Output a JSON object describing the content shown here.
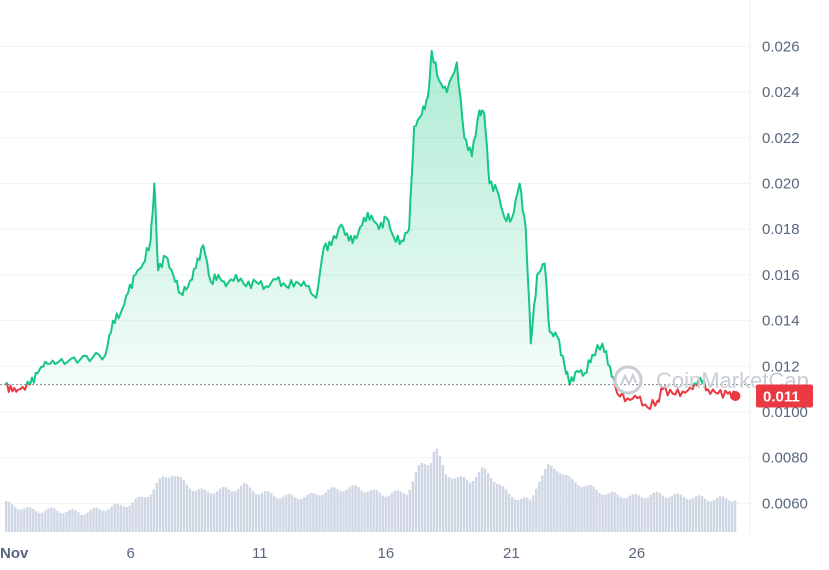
{
  "chart_data": {
    "type": "area",
    "y_ticks": [
      "0.026",
      "0.024",
      "0.022",
      "0.020",
      "0.018",
      "0.016",
      "0.014",
      "0.012",
      "0.0100",
      "0.0080",
      "0.0060"
    ],
    "x_ticks": [
      "Nov",
      "6",
      "11",
      "16",
      "21",
      "26"
    ],
    "x_tick_days": [
      1,
      6,
      11,
      16,
      21,
      26
    ],
    "ylim": [
      0.0055,
      0.027
    ],
    "reference_price": 0.0112,
    "current_price_label": "0.011",
    "colors": {
      "up": "#16c784",
      "down": "#ea3943",
      "volume": "#cfd6e4",
      "grid": "#eff2f5",
      "badge": "#ea3943"
    },
    "price_series": [
      [
        1.0,
        0.0112
      ],
      [
        1.3,
        0.0109
      ],
      [
        1.6,
        0.011
      ],
      [
        2.0,
        0.0112
      ],
      [
        2.3,
        0.0117
      ],
      [
        2.6,
        0.0122
      ],
      [
        3.0,
        0.0121
      ],
      [
        3.5,
        0.0122
      ],
      [
        4.0,
        0.0123
      ],
      [
        4.5,
        0.0124
      ],
      [
        5.0,
        0.0125
      ],
      [
        5.3,
        0.014
      ],
      [
        5.6,
        0.0143
      ],
      [
        5.9,
        0.0152
      ],
      [
        6.2,
        0.016
      ],
      [
        6.5,
        0.0165
      ],
      [
        6.8,
        0.0175
      ],
      [
        6.95,
        0.02
      ],
      [
        7.1,
        0.0162
      ],
      [
        7.4,
        0.0168
      ],
      [
        7.7,
        0.016
      ],
      [
        8.0,
        0.0152
      ],
      [
        8.3,
        0.0155
      ],
      [
        8.6,
        0.0163
      ],
      [
        8.9,
        0.0173
      ],
      [
        9.2,
        0.0157
      ],
      [
        9.5,
        0.016
      ],
      [
        9.8,
        0.0155
      ],
      [
        10.2,
        0.016
      ],
      [
        10.6,
        0.0155
      ],
      [
        11.0,
        0.0157
      ],
      [
        11.4,
        0.0155
      ],
      [
        11.8,
        0.0158
      ],
      [
        12.2,
        0.0155
      ],
      [
        12.6,
        0.0157
      ],
      [
        13.0,
        0.0155
      ],
      [
        13.4,
        0.015
      ],
      [
        13.7,
        0.0172
      ],
      [
        14.0,
        0.0173
      ],
      [
        14.4,
        0.0182
      ],
      [
        14.7,
        0.0175
      ],
      [
        15.0,
        0.0176
      ],
      [
        15.3,
        0.0185
      ],
      [
        15.6,
        0.0186
      ],
      [
        15.9,
        0.018
      ],
      [
        16.2,
        0.0185
      ],
      [
        16.5,
        0.0176
      ],
      [
        16.8,
        0.0175
      ],
      [
        17.1,
        0.018
      ],
      [
        17.3,
        0.0225
      ],
      [
        17.6,
        0.023
      ],
      [
        17.85,
        0.0238
      ],
      [
        18.0,
        0.0258
      ],
      [
        18.3,
        0.0245
      ],
      [
        18.6,
        0.024
      ],
      [
        19.0,
        0.0253
      ],
      [
        19.3,
        0.022
      ],
      [
        19.6,
        0.0212
      ],
      [
        19.9,
        0.0232
      ],
      [
        20.1,
        0.023
      ],
      [
        20.3,
        0.02
      ],
      [
        20.6,
        0.0197
      ],
      [
        20.9,
        0.0185
      ],
      [
        21.2,
        0.0185
      ],
      [
        21.5,
        0.02
      ],
      [
        21.75,
        0.018
      ],
      [
        21.95,
        0.013
      ],
      [
        22.2,
        0.016
      ],
      [
        22.5,
        0.0165
      ],
      [
        22.7,
        0.0135
      ],
      [
        23.0,
        0.0133
      ],
      [
        23.3,
        0.012
      ],
      [
        23.5,
        0.0112
      ],
      [
        23.8,
        0.0118
      ],
      [
        24.1,
        0.0117
      ],
      [
        24.4,
        0.0125
      ],
      [
        24.8,
        0.013
      ],
      [
        25.1,
        0.012
      ],
      [
        25.4,
        0.0108
      ],
      [
        25.8,
        0.0106
      ],
      [
        26.2,
        0.0106
      ],
      [
        26.6,
        0.0102
      ],
      [
        27.0,
        0.0105
      ],
      [
        27.2,
        0.011
      ],
      [
        27.6,
        0.0108
      ],
      [
        28.0,
        0.0109
      ],
      [
        28.4,
        0.011
      ],
      [
        28.7,
        0.0115
      ],
      [
        29.0,
        0.011
      ],
      [
        29.4,
        0.0108
      ],
      [
        29.8,
        0.0108
      ],
      [
        30.1,
        0.0107
      ]
    ],
    "volume_series": [
      [
        1.0,
        0.006
      ],
      [
        2.0,
        0.0057
      ],
      [
        3.0,
        0.0057
      ],
      [
        4.0,
        0.0056
      ],
      [
        5.0,
        0.0058
      ],
      [
        6.0,
        0.006
      ],
      [
        6.8,
        0.0065
      ],
      [
        7.2,
        0.0071
      ],
      [
        7.6,
        0.0073
      ],
      [
        8.0,
        0.007
      ],
      [
        8.5,
        0.0066
      ],
      [
        9.0,
        0.0065
      ],
      [
        9.5,
        0.0066
      ],
      [
        10.0,
        0.0066
      ],
      [
        10.5,
        0.0068
      ],
      [
        11.0,
        0.0065
      ],
      [
        12.0,
        0.0063
      ],
      [
        13.0,
        0.0063
      ],
      [
        14.0,
        0.0066
      ],
      [
        15.0,
        0.0067
      ],
      [
        16.0,
        0.0064
      ],
      [
        17.0,
        0.0065
      ],
      [
        17.5,
        0.0077
      ],
      [
        17.9,
        0.0078
      ],
      [
        18.1,
        0.0085
      ],
      [
        18.5,
        0.0073
      ],
      [
        19.0,
        0.0071
      ],
      [
        19.5,
        0.007
      ],
      [
        20.0,
        0.0075
      ],
      [
        20.5,
        0.007
      ],
      [
        21.0,
        0.0064
      ],
      [
        21.5,
        0.0062
      ],
      [
        21.9,
        0.0061
      ],
      [
        22.2,
        0.007
      ],
      [
        22.6,
        0.0076
      ],
      [
        23.0,
        0.0075
      ],
      [
        23.5,
        0.007
      ],
      [
        24.0,
        0.0068
      ],
      [
        24.5,
        0.0066
      ],
      [
        25.0,
        0.0064
      ],
      [
        26.0,
        0.0063
      ],
      [
        27.0,
        0.0064
      ],
      [
        28.0,
        0.0063
      ],
      [
        29.0,
        0.0062
      ],
      [
        30.1,
        0.0062
      ]
    ],
    "watermark_text": "CoinMarketCap",
    "grid": true,
    "axis_position": "right"
  }
}
